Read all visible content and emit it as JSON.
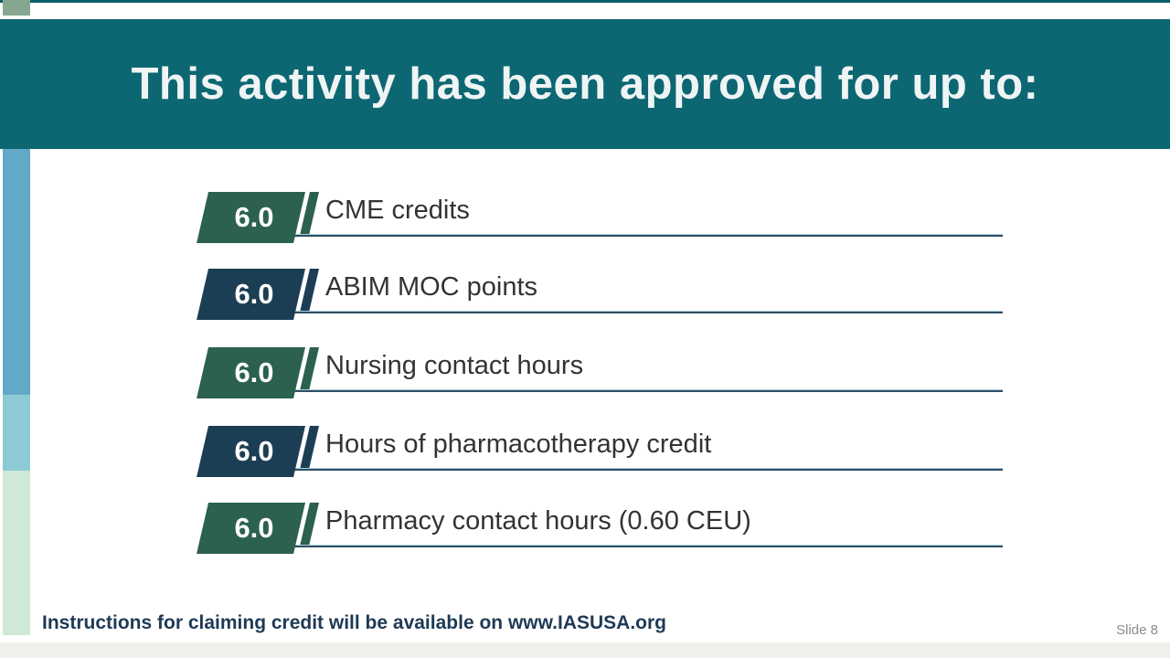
{
  "header": {
    "title": "This activity has been approved for up to:"
  },
  "credits": {
    "items": [
      {
        "value": "6.0",
        "label": "CME credits",
        "color": "green"
      },
      {
        "value": "6.0",
        "label": "ABIM MOC points",
        "color": "navy"
      },
      {
        "value": "6.0",
        "label": "Nursing contact hours",
        "color": "green"
      },
      {
        "value": "6.0",
        "label": "Hours of pharmacotherapy credit",
        "color": "navy"
      },
      {
        "value": "6.0",
        "label": "Pharmacy contact hours (0.60 CEU)",
        "color": "green"
      }
    ]
  },
  "footer": {
    "note": "Instructions for claiming credit will be available on www.IASUSA.org",
    "slide_number": "Slide 8"
  },
  "colors": {
    "green": "#2b614e",
    "navy": "#1c3e54",
    "banner_teal": "#0c6773",
    "underline_dark": "#2e4f63",
    "underline_light": "#a9cede",
    "stripe_blue": "#61a9c6",
    "stripe_lightblue": "#8ccbd6",
    "stripe_green": "#cfe8d7",
    "corner_sage": "#87a690"
  }
}
